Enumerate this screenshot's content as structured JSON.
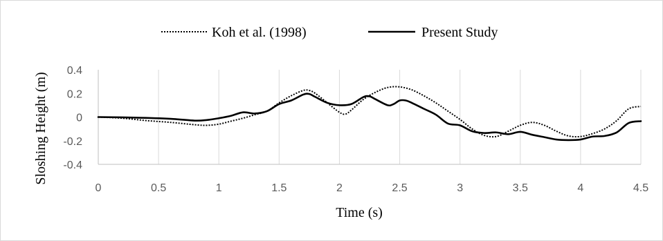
{
  "chart_data": {
    "type": "line",
    "title": "",
    "xlabel": "Time (s)",
    "ylabel": "Sloshing Height (m)",
    "xlim": [
      0,
      4.5
    ],
    "ylim": [
      -0.4,
      0.4
    ],
    "x_ticks": [
      "0",
      "0.5",
      "1",
      "1.5",
      "2",
      "2.5",
      "3",
      "3.5",
      "4",
      "4.5"
    ],
    "y_ticks": [
      "0.4",
      "0.2",
      "0",
      "-0.2",
      "-0.4"
    ],
    "grid": "vertical",
    "legend_position": "top",
    "series": [
      {
        "name": "Koh et al. (1998)",
        "style": "dotted",
        "color": "#000000",
        "points": [
          [
            0,
            0
          ],
          [
            0.2,
            -0.01
          ],
          [
            0.4,
            -0.03
          ],
          [
            0.6,
            -0.045
          ],
          [
            0.8,
            -0.065
          ],
          [
            0.9,
            -0.07
          ],
          [
            1.0,
            -0.06
          ],
          [
            1.1,
            -0.035
          ],
          [
            1.2,
            -0.01
          ],
          [
            1.3,
            0.02
          ],
          [
            1.4,
            0.05
          ],
          [
            1.5,
            0.12
          ],
          [
            1.6,
            0.18
          ],
          [
            1.7,
            0.225
          ],
          [
            1.75,
            0.225
          ],
          [
            1.8,
            0.2
          ],
          [
            1.9,
            0.12
          ],
          [
            2.0,
            0.04
          ],
          [
            2.05,
            0.025
          ],
          [
            2.1,
            0.06
          ],
          [
            2.2,
            0.15
          ],
          [
            2.3,
            0.21
          ],
          [
            2.4,
            0.25
          ],
          [
            2.5,
            0.255
          ],
          [
            2.6,
            0.23
          ],
          [
            2.7,
            0.18
          ],
          [
            2.8,
            0.12
          ],
          [
            2.9,
            0.05
          ],
          [
            3.0,
            -0.02
          ],
          [
            3.1,
            -0.1
          ],
          [
            3.2,
            -0.155
          ],
          [
            3.3,
            -0.165
          ],
          [
            3.4,
            -0.12
          ],
          [
            3.5,
            -0.07
          ],
          [
            3.6,
            -0.045
          ],
          [
            3.7,
            -0.07
          ],
          [
            3.8,
            -0.12
          ],
          [
            3.9,
            -0.16
          ],
          [
            4.0,
            -0.165
          ],
          [
            4.1,
            -0.14
          ],
          [
            4.2,
            -0.1
          ],
          [
            4.3,
            -0.03
          ],
          [
            4.4,
            0.07
          ],
          [
            4.5,
            0.09
          ]
        ]
      },
      {
        "name": "Present Study",
        "style": "solid",
        "color": "#000000",
        "points": [
          [
            0,
            0
          ],
          [
            0.3,
            -0.005
          ],
          [
            0.6,
            -0.015
          ],
          [
            0.8,
            -0.03
          ],
          [
            0.9,
            -0.025
          ],
          [
            1.0,
            -0.01
          ],
          [
            1.1,
            0.01
          ],
          [
            1.2,
            0.04
          ],
          [
            1.3,
            0.03
          ],
          [
            1.4,
            0.05
          ],
          [
            1.5,
            0.11
          ],
          [
            1.6,
            0.14
          ],
          [
            1.7,
            0.19
          ],
          [
            1.75,
            0.195
          ],
          [
            1.8,
            0.17
          ],
          [
            1.9,
            0.12
          ],
          [
            2.0,
            0.1
          ],
          [
            2.1,
            0.11
          ],
          [
            2.2,
            0.17
          ],
          [
            2.25,
            0.175
          ],
          [
            2.3,
            0.15
          ],
          [
            2.4,
            0.1
          ],
          [
            2.45,
            0.11
          ],
          [
            2.5,
            0.14
          ],
          [
            2.55,
            0.14
          ],
          [
            2.6,
            0.12
          ],
          [
            2.7,
            0.07
          ],
          [
            2.8,
            0.02
          ],
          [
            2.9,
            -0.055
          ],
          [
            3.0,
            -0.07
          ],
          [
            3.1,
            -0.12
          ],
          [
            3.2,
            -0.135
          ],
          [
            3.3,
            -0.13
          ],
          [
            3.4,
            -0.145
          ],
          [
            3.5,
            -0.125
          ],
          [
            3.6,
            -0.15
          ],
          [
            3.7,
            -0.17
          ],
          [
            3.8,
            -0.19
          ],
          [
            3.9,
            -0.195
          ],
          [
            4.0,
            -0.19
          ],
          [
            4.1,
            -0.165
          ],
          [
            4.2,
            -0.16
          ],
          [
            4.3,
            -0.13
          ],
          [
            4.4,
            -0.05
          ],
          [
            4.5,
            -0.035
          ]
        ]
      }
    ]
  }
}
